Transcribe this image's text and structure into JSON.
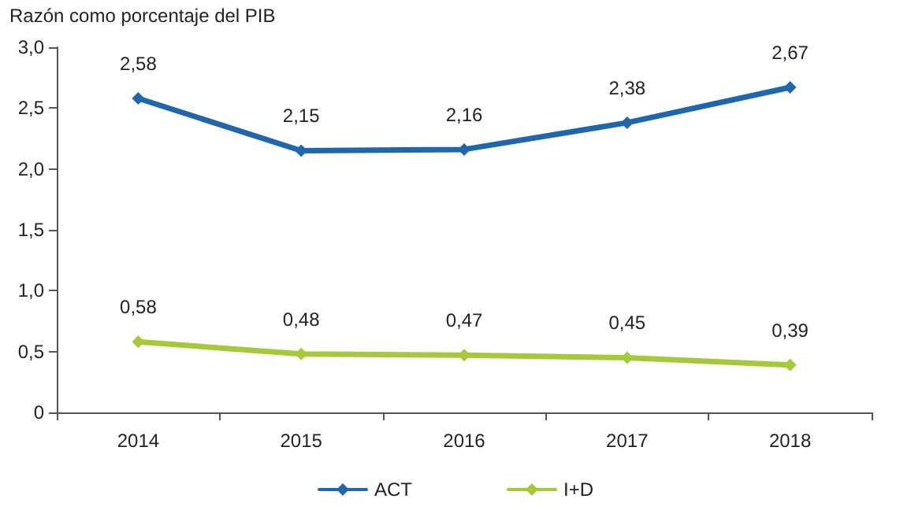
{
  "chart_data": {
    "type": "line",
    "ylabel": "Razón como porcentaje del PIB",
    "categories": [
      "2014",
      "2015",
      "2016",
      "2017",
      "2018"
    ],
    "series": [
      {
        "name": "ACT",
        "color": "#1f66ad",
        "values": [
          2.58,
          2.15,
          2.16,
          2.38,
          2.67
        ],
        "value_labels": [
          "2,58",
          "2,15",
          "2,16",
          "2,38",
          "2,67"
        ]
      },
      {
        "name": "I+D",
        "color": "#a6c93c",
        "values": [
          0.58,
          0.48,
          0.47,
          0.45,
          0.39
        ],
        "value_labels": [
          "0,58",
          "0,48",
          "0,47",
          "0,45",
          "0,39"
        ]
      }
    ],
    "ylim": [
      0,
      3
    ],
    "yticks": [
      0,
      {
        "value": 0.5,
        "label": "0,5"
      },
      {
        "value": 1,
        "label": "1,0"
      },
      {
        "value": 1.5,
        "label": "1,5"
      },
      {
        "value": 2,
        "label": "2,0"
      },
      {
        "value": 2.5,
        "label": "2,5"
      },
      {
        "value": 3,
        "label": "3,0"
      }
    ],
    "grid": false,
    "legend": "bottom",
    "marker": "diamond",
    "line_style": "solid"
  }
}
